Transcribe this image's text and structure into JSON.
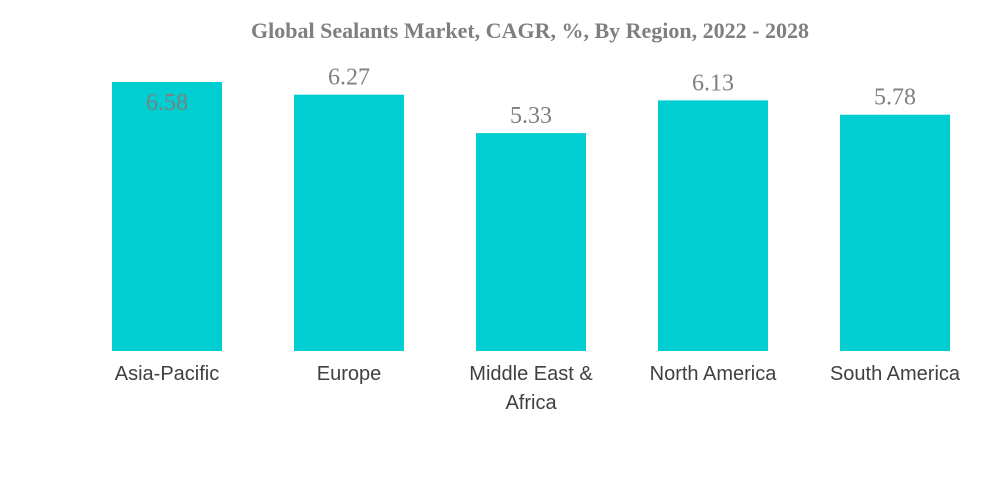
{
  "chart_data": {
    "type": "bar",
    "title": "Global Sealants Market, CAGR, %, By Region, 2022 - 2028",
    "categories": [
      [
        "Asia-Pacific"
      ],
      [
        "Europe"
      ],
      [
        "Middle East &",
        "Africa"
      ],
      [
        "North America"
      ],
      [
        "South America"
      ]
    ],
    "values": [
      6.58,
      6.27,
      5.33,
      6.13,
      5.78
    ],
    "value_labels": [
      "6.58",
      "6.27",
      "5.33",
      "6.13",
      "5.78"
    ],
    "xlabel": "",
    "ylabel": "",
    "ylim": [
      0,
      6.58
    ],
    "grid": false,
    "legend": "none",
    "colors": {
      "bar": "#00CED1",
      "title": "#7f7f7f",
      "data_label": "#7f7f7f",
      "tick_label": "#404040"
    }
  }
}
